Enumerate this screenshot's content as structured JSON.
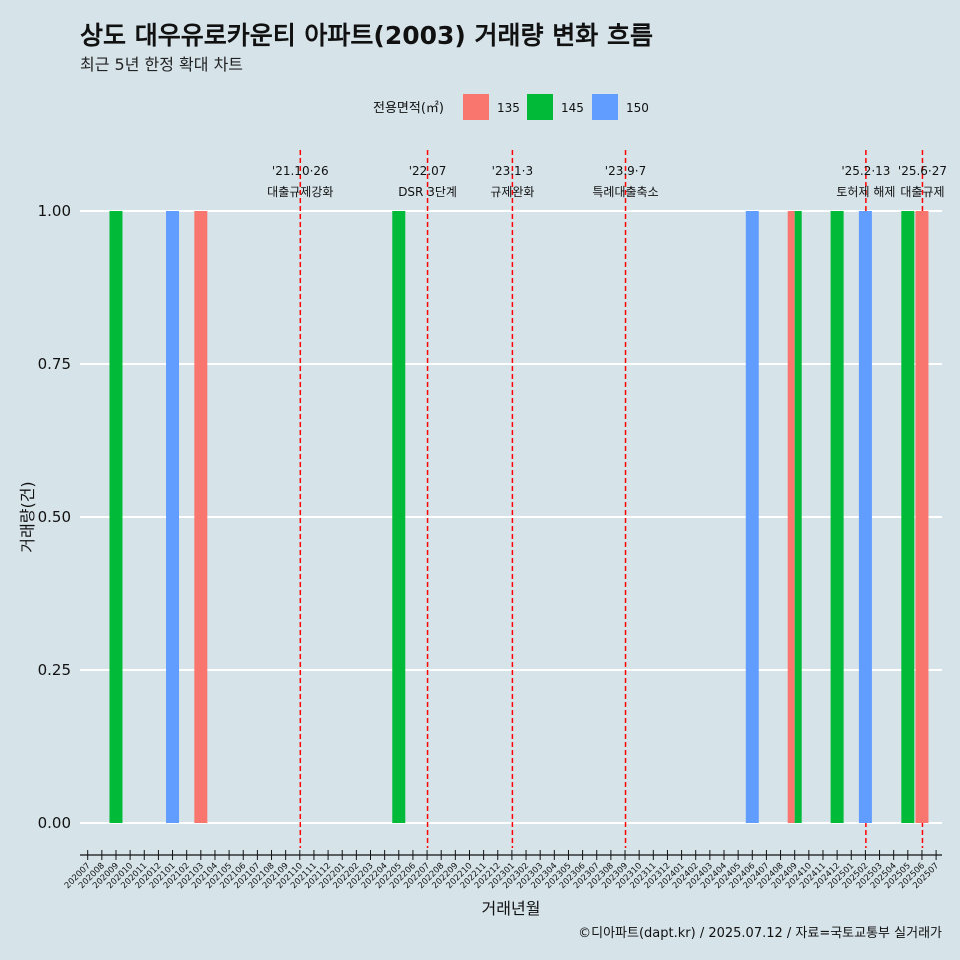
{
  "header": {
    "title": "상도 대우유로카운티 아파트(2003) 거래량 변화 흐름",
    "subtitle": "최근 5년 한정 확대 차트"
  },
  "legend": {
    "title": "전용면적(㎡)",
    "items": [
      {
        "label": "135",
        "color": "#F8766D"
      },
      {
        "label": "145",
        "color": "#00BA38"
      },
      {
        "label": "150",
        "color": "#619CFF"
      }
    ]
  },
  "caption": "©디아파트(dapt.kr) / 2025.07.12 / 자료=국토교통부 실거래가",
  "chart_data": {
    "type": "bar",
    "xlabel": "거래년월",
    "ylabel": "거래량(건)",
    "ylim": [
      0,
      1
    ],
    "yticks": [
      "0.00",
      "0.25",
      "0.50",
      "0.75",
      "1.00"
    ],
    "categories": [
      "202007",
      "202008",
      "202009",
      "202010",
      "202011",
      "202012",
      "202101",
      "202102",
      "202103",
      "202104",
      "202105",
      "202106",
      "202107",
      "202108",
      "202109",
      "202110",
      "202111",
      "202112",
      "202201",
      "202202",
      "202203",
      "202204",
      "202205",
      "202206",
      "202207",
      "202208",
      "202209",
      "202210",
      "202211",
      "202212",
      "202301",
      "202302",
      "202303",
      "202304",
      "202305",
      "202306",
      "202307",
      "202308",
      "202309",
      "202310",
      "202311",
      "202312",
      "202401",
      "202402",
      "202403",
      "202404",
      "202405",
      "202406",
      "202407",
      "202408",
      "202409",
      "202410",
      "202411",
      "202412",
      "202501",
      "202502",
      "202503",
      "202504",
      "202505",
      "202506",
      "202507"
    ],
    "bars": [
      {
        "month": "202009",
        "area": "145",
        "value": 1
      },
      {
        "month": "202101",
        "area": "150",
        "value": 1
      },
      {
        "month": "202103",
        "area": "135",
        "value": 1
      },
      {
        "month": "202205",
        "area": "145",
        "value": 1
      },
      {
        "month": "202406",
        "area": "150",
        "value": 1
      },
      {
        "month": "202409",
        "area": "135",
        "value": 1,
        "dodge": "left"
      },
      {
        "month": "202409",
        "area": "145",
        "value": 1,
        "dodge": "right"
      },
      {
        "month": "202412",
        "area": "145",
        "value": 1
      },
      {
        "month": "202502",
        "area": "150",
        "value": 1
      },
      {
        "month": "202505",
        "area": "145",
        "value": 1
      },
      {
        "month": "202506",
        "area": "135",
        "value": 1
      }
    ],
    "annotations": [
      {
        "date": "'21.10·26",
        "label": "대출규제강화",
        "month": "202110"
      },
      {
        "date": "'22.07",
        "label": "DSR 3단계",
        "month": "202207"
      },
      {
        "date": "'23.1·3",
        "label": "규제완화",
        "month": "202301"
      },
      {
        "date": "'23.9·7",
        "label": "특례대출축소",
        "month": "202309"
      },
      {
        "date": "'25.2·13",
        "label": "토허제 해제",
        "month": "202502"
      },
      {
        "date": "'25.6·27",
        "label": "대출규제",
        "month": "202506"
      }
    ]
  }
}
